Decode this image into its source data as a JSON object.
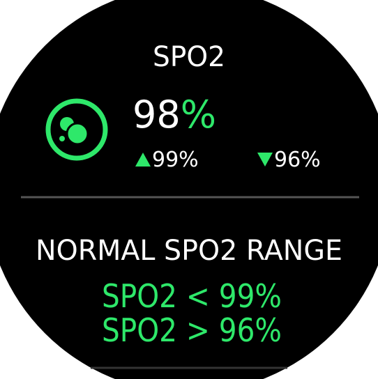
{
  "header": {
    "title": "SPO2"
  },
  "reading": {
    "value": "98",
    "unit": "%",
    "max": "99%",
    "min": "96%"
  },
  "range": {
    "title": "NORMAL SPO2 RANGE",
    "lines": [
      "SPO2 < 99%",
      "SPO2 > 96%"
    ]
  }
}
